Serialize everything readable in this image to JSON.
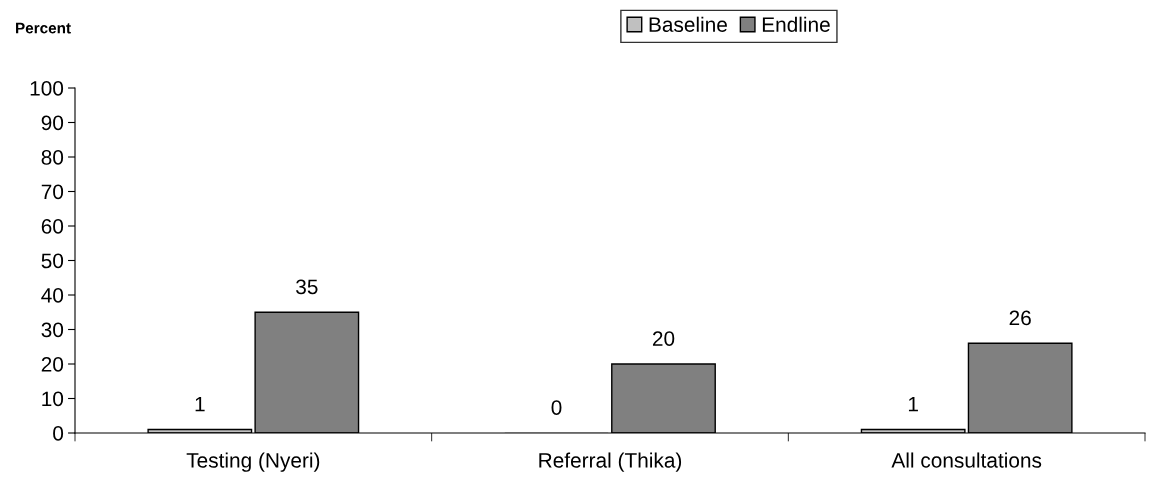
{
  "chart_data": {
    "type": "bar",
    "ylabel": "Percent",
    "categories": [
      "Testing (Nyeri)",
      "Referral (Thika)",
      "All consultations"
    ],
    "series": [
      {
        "name": "Baseline",
        "color": "#c0c0c0",
        "values": [
          1,
          0,
          1
        ]
      },
      {
        "name": "Endline",
        "color": "#808080",
        "values": [
          35,
          20,
          26
        ]
      }
    ],
    "ylim": [
      0,
      100
    ],
    "yticks": [
      0,
      10,
      20,
      30,
      40,
      50,
      60,
      70,
      80,
      90,
      100
    ],
    "data_labels": true,
    "grid": false,
    "legend": "top"
  }
}
